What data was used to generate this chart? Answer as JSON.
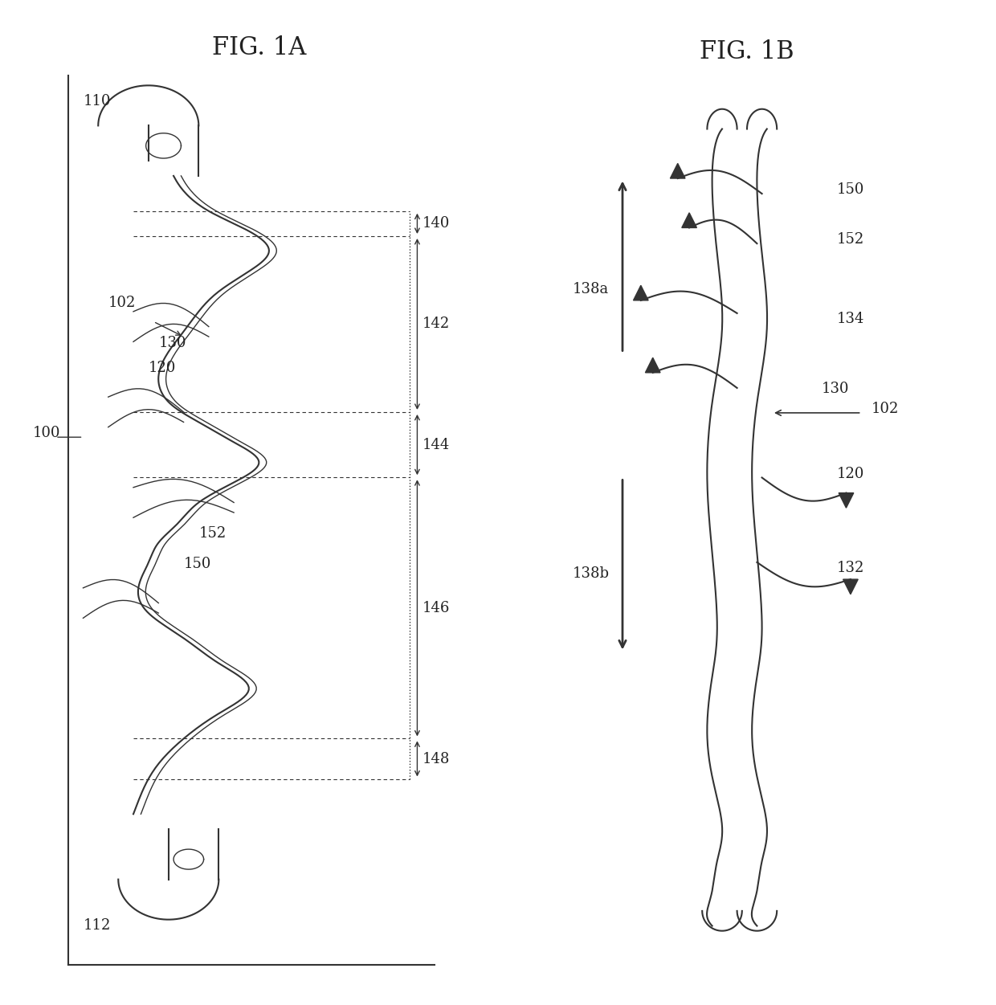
{
  "title_1a": "FIG. 1A",
  "title_1b": "FIG. 1B",
  "bg_color": "#ffffff",
  "line_color": "#333333",
  "label_color": "#222222",
  "font_size_title": 22,
  "font_size_label": 13,
  "fig_width": 12.4,
  "fig_height": 12.51
}
